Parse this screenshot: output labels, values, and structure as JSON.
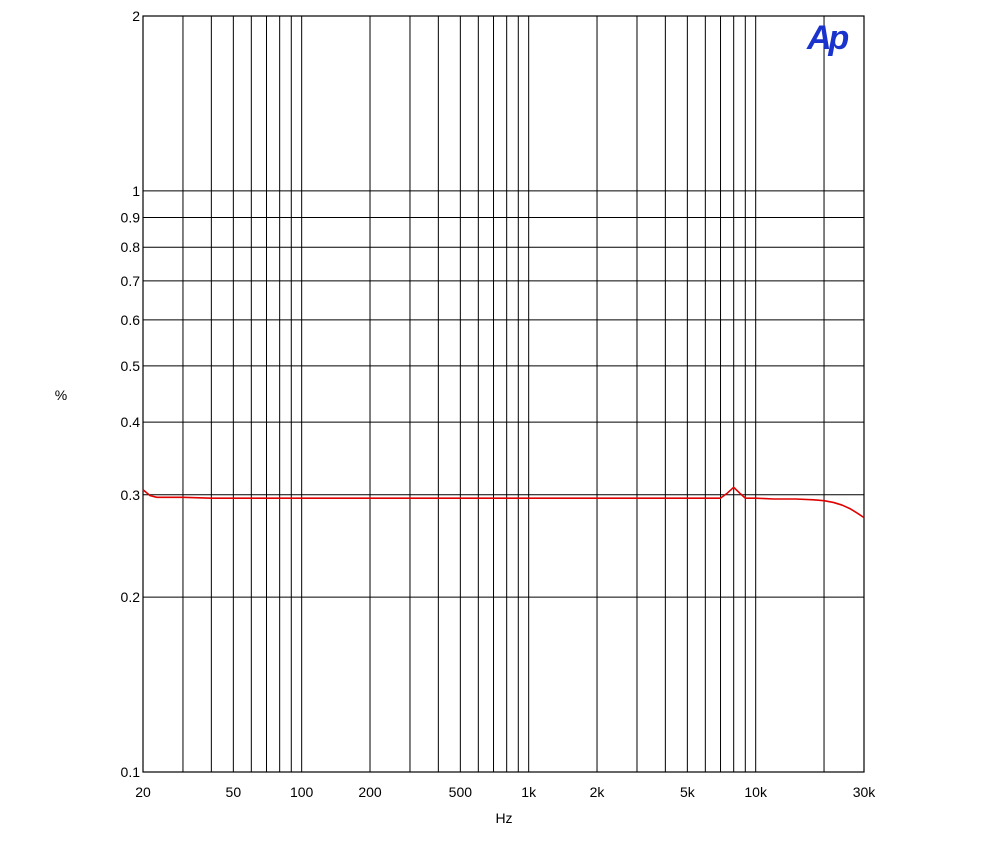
{
  "chart_data": {
    "type": "line",
    "title": "",
    "xlabel": "Hz",
    "ylabel": "%",
    "x_scale": "log",
    "y_scale": "log",
    "xlim": [
      20,
      30000
    ],
    "ylim": [
      0.1,
      2
    ],
    "grid": true,
    "logo": "Ap",
    "colors": {
      "series": "#e00000",
      "logo": "#1a33cc",
      "grid": "#000000"
    },
    "x_ticks": [
      {
        "value": 20,
        "label": "20"
      },
      {
        "value": 50,
        "label": "50"
      },
      {
        "value": 100,
        "label": "100"
      },
      {
        "value": 200,
        "label": "200"
      },
      {
        "value": 500,
        "label": "500"
      },
      {
        "value": 1000,
        "label": "1k"
      },
      {
        "value": 2000,
        "label": "2k"
      },
      {
        "value": 5000,
        "label": "5k"
      },
      {
        "value": 10000,
        "label": "10k"
      },
      {
        "value": 30000,
        "label": "30k"
      }
    ],
    "x_gridlines": [
      20,
      30,
      40,
      50,
      60,
      70,
      80,
      90,
      100,
      200,
      300,
      400,
      500,
      600,
      700,
      800,
      900,
      1000,
      2000,
      3000,
      4000,
      5000,
      6000,
      7000,
      8000,
      9000,
      10000,
      20000,
      30000
    ],
    "y_ticks": [
      {
        "value": 0.1,
        "label": "0.1"
      },
      {
        "value": 0.2,
        "label": "0.2"
      },
      {
        "value": 0.3,
        "label": "0.3"
      },
      {
        "value": 0.4,
        "label": "0.4"
      },
      {
        "value": 0.5,
        "label": "0.5"
      },
      {
        "value": 0.6,
        "label": "0.6"
      },
      {
        "value": 0.7,
        "label": "0.7"
      },
      {
        "value": 0.8,
        "label": "0.8"
      },
      {
        "value": 0.9,
        "label": "0.9"
      },
      {
        "value": 1,
        "label": "1"
      },
      {
        "value": 2,
        "label": "2"
      }
    ],
    "series": [
      {
        "x": [
          20,
          21.5,
          23,
          25,
          30,
          40,
          50,
          60,
          80,
          100,
          150,
          200,
          300,
          500,
          700,
          1000,
          1500,
          2000,
          3000,
          5000,
          7000,
          7500,
          8000,
          8500,
          9000,
          10000,
          12000,
          15000,
          18000,
          20000,
          22000,
          24000,
          26000,
          28000,
          30000
        ],
        "y": [
          0.306,
          0.299,
          0.297,
          0.297,
          0.297,
          0.296,
          0.296,
          0.296,
          0.296,
          0.296,
          0.296,
          0.296,
          0.296,
          0.296,
          0.296,
          0.296,
          0.296,
          0.296,
          0.296,
          0.296,
          0.296,
          0.302,
          0.309,
          0.302,
          0.296,
          0.296,
          0.295,
          0.295,
          0.294,
          0.293,
          0.291,
          0.288,
          0.284,
          0.279,
          0.274
        ]
      }
    ]
  }
}
